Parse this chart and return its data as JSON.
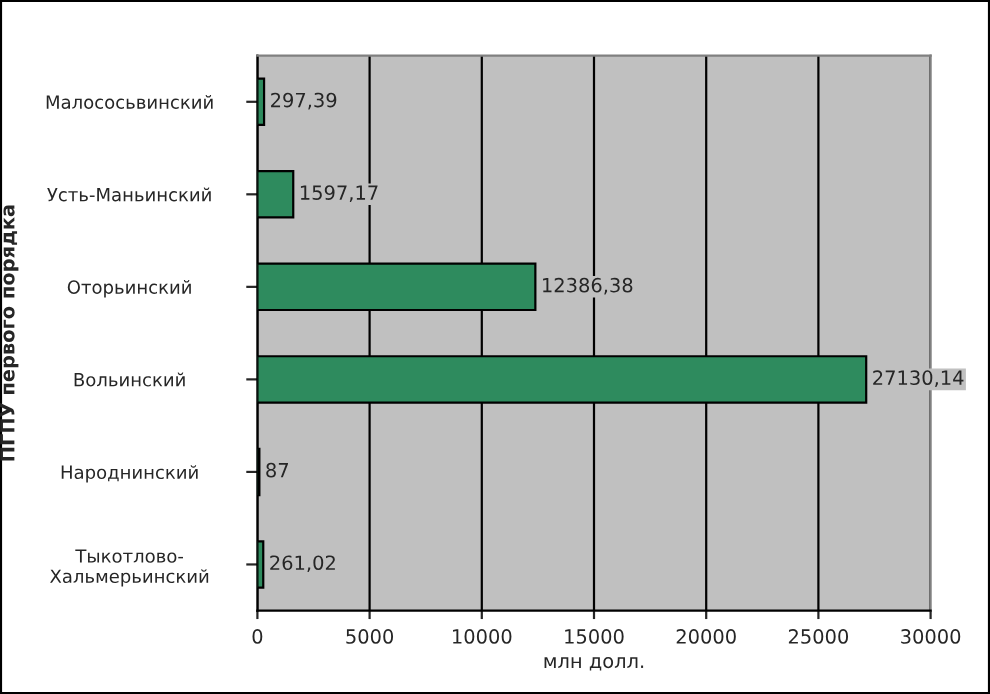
{
  "chart_data": {
    "type": "bar",
    "orientation": "horizontal",
    "categories": [
      "Малососьвинский",
      "Усть-Маньинский",
      "Оторьинский",
      "Вольинский",
      "Народнинский",
      "Тыкотлово-\nХальмерьинский"
    ],
    "values": [
      297.39,
      1597.17,
      12386.38,
      27130.14,
      87,
      261.02
    ],
    "value_labels": [
      "297,39",
      "1597,17",
      "12386,38",
      "27130,14",
      "87",
      "261,02"
    ],
    "color": "#2e8b5e",
    "xlabel": "млн долл.",
    "ylabel": "ПГПУ первого порядка",
    "xlim": [
      0,
      30000
    ],
    "xticks": [
      0,
      5000,
      10000,
      15000,
      20000,
      25000,
      30000
    ],
    "grid": "x"
  }
}
